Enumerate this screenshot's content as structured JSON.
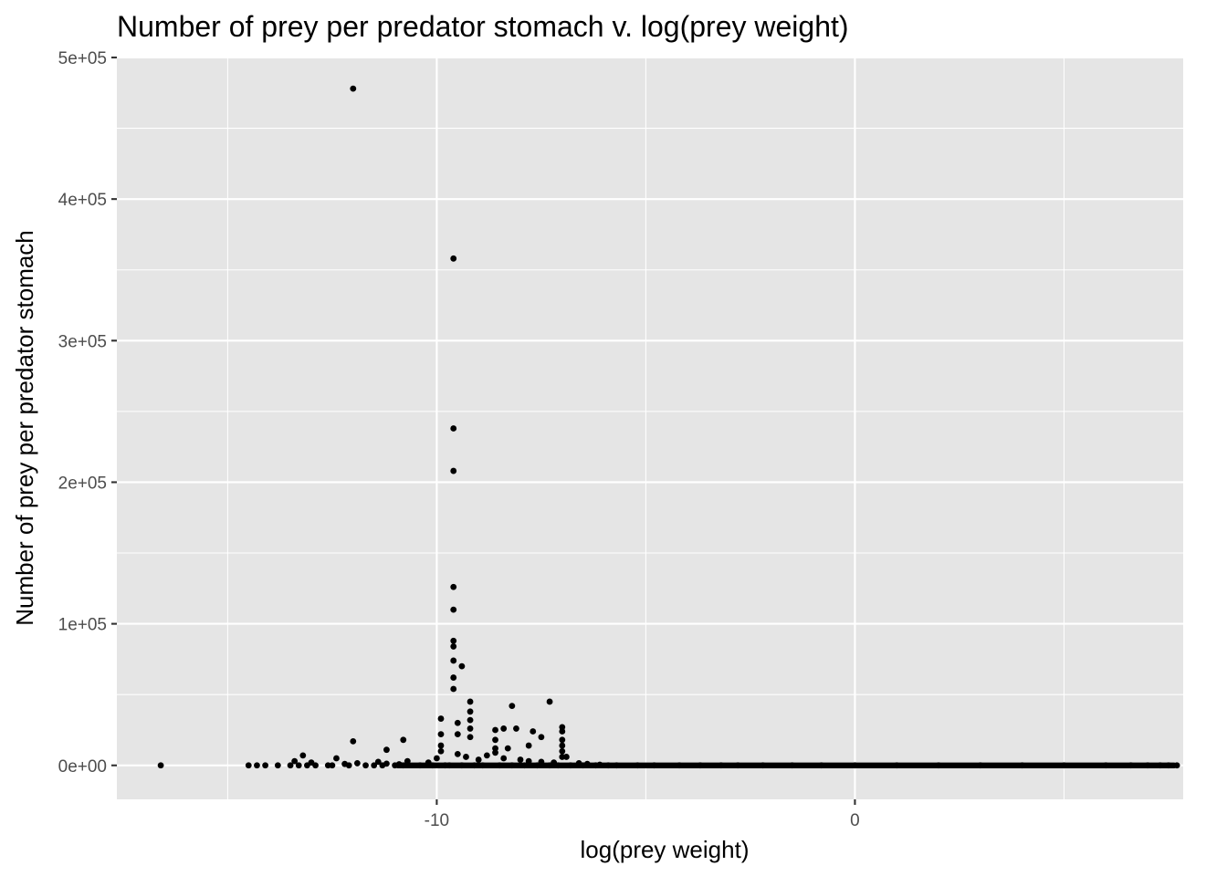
{
  "chart_data": {
    "type": "scatter",
    "title": "Number of prey per predator stomach v. log(prey weight)",
    "xlabel": "log(prey weight)",
    "ylabel": "Number of prey per predator stomach",
    "xlim": [
      -17.65,
      7.85
    ],
    "ylim": [
      -24000,
      500000
    ],
    "x_ticks": [
      -10,
      0
    ],
    "x_tick_labels": [
      "-10",
      "0"
    ],
    "x_minor_ticks": [
      -15,
      -5,
      5
    ],
    "y_ticks": [
      0,
      100000,
      200000,
      300000,
      400000,
      500000
    ],
    "y_tick_labels": [
      "0e+00",
      "1e+05",
      "2e+05",
      "3e+05",
      "4e+05",
      "5e+05"
    ],
    "grid": true,
    "background": "#e5e5e5",
    "point_color": "#000000",
    "points": {
      "x": [
        -12.0,
        -9.6,
        -9.6,
        -9.6,
        -9.6,
        -9.6,
        -9.6,
        -9.6,
        -9.6,
        -9.6,
        -9.6,
        -9.4,
        -7.3,
        -8.2,
        -8.1,
        -8.4,
        -7.7,
        -7.5,
        -12.0,
        -10.8,
        -12.4,
        -11.2,
        -9.9,
        -9.9,
        -9.9,
        -9.5,
        -9.5,
        -9.2,
        -9.2,
        -9.2,
        -9.2,
        -9.2,
        -8.6,
        -8.6,
        -8.6,
        -8.3,
        -7.8,
        -7.0,
        -7.0,
        -7.0,
        -7.0,
        -7.0,
        -7.0,
        -16.6,
        -14.5,
        -14.3,
        -14.1,
        -13.8,
        -13.5,
        -13.3,
        -13.1,
        -12.9,
        -12.6,
        -12.5,
        -12.1,
        -11.7,
        -11.5,
        -11.3,
        -11.0,
        -10.8,
        -10.4,
        -10.1,
        -9.8,
        -9.7,
        -9.4,
        -9.1,
        -8.9,
        -8.5,
        -8.2,
        -7.9,
        -7.6,
        -7.3,
        -7.1,
        -6.8,
        -6.5,
        -6.2,
        -5.9,
        -5.7,
        -5.2,
        -4.8,
        -4.2,
        -3.7,
        -3.2,
        -2.8,
        -2.2,
        -1.5,
        -0.8,
        0.0,
        1.0,
        2.0,
        3.0,
        4.0,
        5.0,
        6.0,
        6.6,
        7.0,
        7.3,
        7.5,
        7.7,
        -13.2,
        -13.4,
        -13.0,
        -12.2,
        -11.9,
        -11.4,
        -11.2,
        -10.9,
        -10.7,
        -10.2,
        -10.0,
        -9.9,
        -9.5,
        -9.3,
        -9.0,
        -8.8,
        -8.6,
        -8.4,
        -8.0,
        -7.8,
        -7.5,
        -7.2,
        -6.9,
        -6.6,
        -6.4,
        -6.1
      ],
      "y": [
        478000,
        358000,
        238000,
        208000,
        126000,
        110000,
        88000,
        84000,
        74000,
        62000,
        54000,
        70000,
        45000,
        42000,
        26000,
        26000,
        24000,
        20000,
        17000,
        18000,
        5000,
        11000,
        33000,
        22000,
        14000,
        30000,
        22000,
        45000,
        38000,
        32000,
        26000,
        20000,
        25000,
        18000,
        12000,
        12000,
        14000,
        27000,
        24000,
        18000,
        14000,
        10000,
        6000,
        0,
        0,
        0,
        0,
        0,
        0,
        0,
        0,
        0,
        0,
        0,
        0,
        0,
        0,
        0,
        0,
        0,
        0,
        0,
        0,
        0,
        0,
        0,
        0,
        0,
        0,
        0,
        0,
        0,
        0,
        0,
        0,
        0,
        0,
        0,
        0,
        0,
        0,
        0,
        0,
        0,
        0,
        0,
        0,
        0,
        0,
        0,
        0,
        0,
        0,
        0,
        0,
        0,
        0,
        0,
        0,
        7000,
        3000,
        2000,
        1000,
        1500,
        2500,
        1200,
        800,
        3000,
        2000,
        5000,
        10000,
        8000,
        6000,
        4000,
        7000,
        9000,
        5000,
        4000,
        3000,
        2500,
        2000,
        6000,
        1500,
        1000,
        500
      ]
    }
  }
}
